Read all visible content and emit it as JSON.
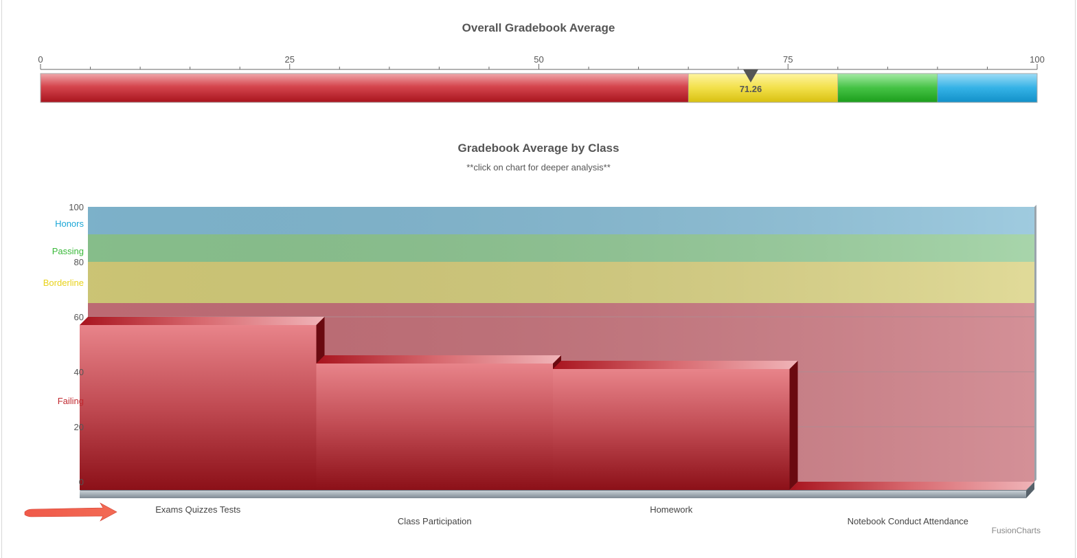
{
  "gauge": {
    "title": "Overall Gradebook Average",
    "min": 0,
    "max": 100,
    "tick_labels": [
      "0",
      "25",
      "50",
      "75",
      "100"
    ],
    "value": 71.26,
    "value_label": "71.26",
    "ranges": [
      {
        "min": 0,
        "max": 65,
        "color": "#c8323c"
      },
      {
        "min": 65,
        "max": 80,
        "color": "#f0df4a"
      },
      {
        "min": 80,
        "max": 90,
        "color": "#3cc03c"
      },
      {
        "min": 90,
        "max": 100,
        "color": "#2eaee4"
      }
    ]
  },
  "chart_data": {
    "type": "bar",
    "title": "Gradebook Average by Class",
    "subtitle": "**click on chart for deeper analysis**",
    "categories": [
      "Exams Quizzes Tests",
      "Class Participation",
      "Homework",
      "Notebook Conduct Attendance"
    ],
    "values": [
      60,
      46,
      44,
      0
    ],
    "ylim": [
      0,
      100
    ],
    "y_ticks": [
      "0",
      "20",
      "40",
      "60",
      "80",
      "100"
    ],
    "bands": [
      {
        "label": "Failing",
        "min": 0,
        "max": 65,
        "color": "#c8717a",
        "label_color": "#c0282f"
      },
      {
        "label": "Borderline",
        "min": 65,
        "max": 80,
        "color": "#d8d07c",
        "label_color": "#e8d21a"
      },
      {
        "label": "Passing",
        "min": 80,
        "max": 90,
        "color": "#8fc993",
        "label_color": "#38b838"
      },
      {
        "label": "Honors",
        "min": 90,
        "max": 100,
        "color": "#84bcd6",
        "label_color": "#1aa6d6"
      }
    ],
    "bar_color": "#c44048"
  },
  "watermark": "FusionCharts"
}
